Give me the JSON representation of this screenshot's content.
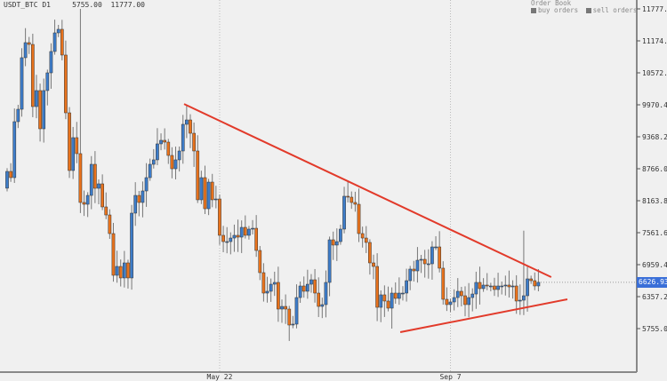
{
  "header": {
    "symbol": "USDT_BTC",
    "timeframe": "D1",
    "low": "5755.00",
    "high": "11777.00"
  },
  "order_book": {
    "title": "Order Book",
    "buy_label": "buy orders",
    "sell_label": "sell orders"
  },
  "current_price": "6626.93",
  "colors": {
    "up": "#3d7cc9",
    "down": "#e8721c",
    "trendline": "#e23a2a",
    "background": "#f0f0f0"
  },
  "chart_data": {
    "type": "candlestick",
    "title": "USDT_BTC D1",
    "ylim": [
      5755.0,
      11777.6
    ],
    "y_ticks": [
      "11777.6",
      "11174.8",
      "10572.6",
      "9970.40",
      "9368.20",
      "8766.00",
      "8163.80",
      "7561.60",
      "6959.40",
      "6357.20",
      "5755.00"
    ],
    "x_tick_labels": [
      {
        "label": "May 22",
        "index": 58
      },
      {
        "label": "Sep 7",
        "index": 121
      }
    ],
    "grid": false,
    "first_open": 8400,
    "close": [
      8716,
      8599,
      9653,
      9887,
      10858,
      11142,
      11108,
      9937,
      10239,
      9519,
      10239,
      10573,
      10975,
      11326,
      11393,
      10908,
      9820,
      8733,
      9352,
      9051,
      8131,
      8097,
      8264,
      8850,
      8398,
      8482,
      8047,
      7896,
      7545,
      6759,
      6926,
      6709,
      6993,
      6709,
      7930,
      8264,
      8131,
      8348,
      8599,
      8850,
      8934,
      9235,
      9302,
      9268,
      9017,
      8766,
      8934,
      9101,
      9603,
      9686,
      9435,
      9101,
      8181,
      8599,
      8013,
      8515,
      8181,
      8197,
      7512,
      7394,
      7394,
      7461,
      7512,
      7478,
      7662,
      7512,
      7629,
      7645,
      7227,
      6809,
      6424,
      6458,
      6591,
      6625,
      6123,
      6173,
      6123,
      5822,
      5839,
      6340,
      6558,
      6458,
      6591,
      6675,
      6424,
      6173,
      6207,
      6625,
      7428,
      7328,
      7394,
      7629,
      8248,
      8231,
      8131,
      8097,
      7545,
      7461,
      7378,
      6993,
      6926,
      6156,
      6391,
      6274,
      6140,
      6424,
      6324,
      6424,
      6424,
      6658,
      6876,
      6842,
      7043,
      7060,
      6976,
      6976,
      7294,
      7294,
      6893,
      6307,
      6207,
      6257,
      6340,
      6458,
      6374,
      6207,
      6340,
      6407,
      6625,
      6508,
      6575,
      6558,
      6558,
      6491,
      6558,
      6558,
      6575,
      6541,
      6558,
      6274,
      6290,
      6374,
      6692,
      6658,
      6558,
      6627
    ],
    "notable_wicks": [
      {
        "index": 20,
        "high": 11777
      },
      {
        "index": 105,
        "low": 5755
      },
      {
        "index": 141,
        "high": 7600
      }
    ],
    "trendlines": [
      {
        "from": {
          "index": 48.3,
          "price": 9985
        },
        "to": {
          "index": 148.5,
          "price": 6725
        }
      },
      {
        "from": {
          "index": 107.3,
          "price": 5688
        },
        "to": {
          "index": 152.9,
          "price": 6307
        }
      }
    ]
  }
}
